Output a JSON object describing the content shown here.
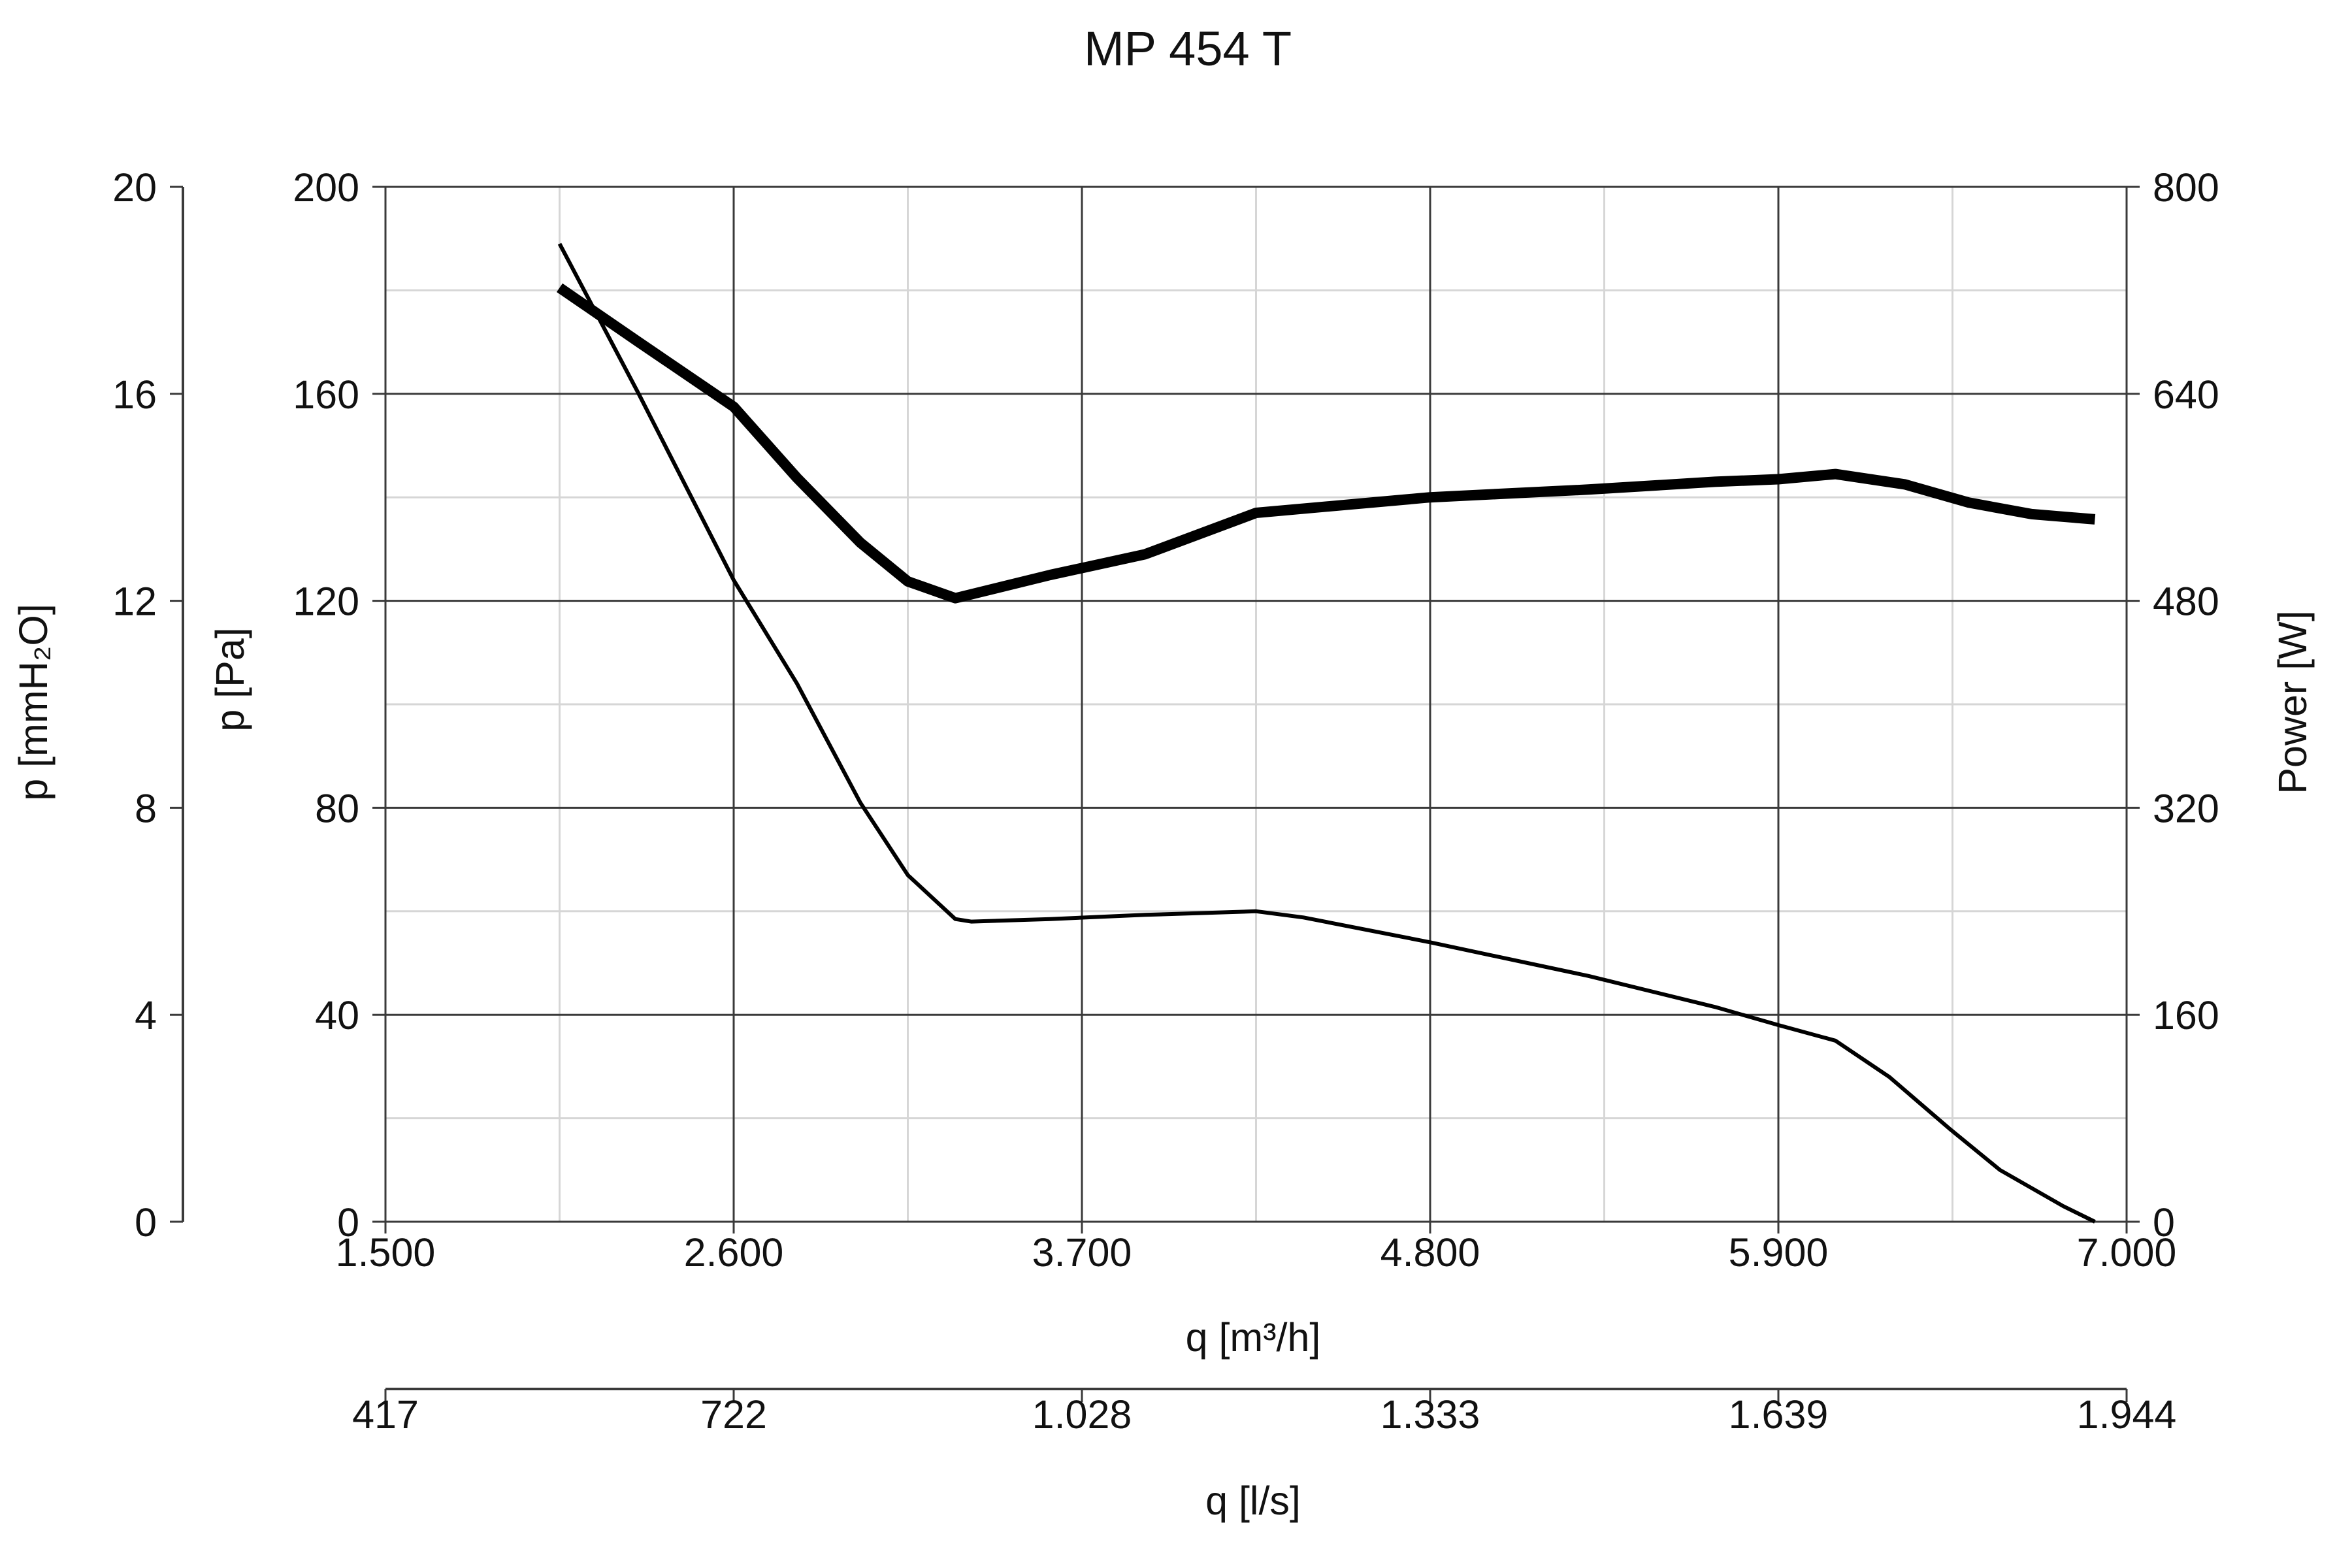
{
  "chart_data": {
    "type": "line",
    "title": "MP 454 T",
    "x_axis": {
      "label": "q [m³/h]",
      "range": [
        1500,
        7000
      ],
      "ticks": [
        1500,
        2600,
        3700,
        4800,
        5900,
        7000
      ],
      "tick_labels": [
        "1.500",
        "2.600",
        "3.700",
        "4.800",
        "5.900",
        "7.000"
      ],
      "minor_ticks": [
        2050,
        3150,
        4250,
        5350,
        6450
      ]
    },
    "x_axis_secondary": {
      "label": "q [l/s]",
      "tick_labels": [
        "417",
        "722",
        "1.028",
        "1.333",
        "1.639",
        "1.944"
      ]
    },
    "y_axis": {
      "label": "p [Pa]",
      "range": [
        0,
        200
      ],
      "ticks": [
        0,
        40,
        80,
        120,
        160,
        200
      ],
      "tick_labels": [
        "0",
        "40",
        "80",
        "120",
        "160",
        "200"
      ],
      "minor_ticks": [
        20,
        60,
        100,
        140,
        180
      ]
    },
    "y_axis_outer": {
      "label": "p [mmH₂O]",
      "tick_labels": [
        "0",
        "4",
        "8",
        "12",
        "16",
        "20"
      ]
    },
    "y_axis_right": {
      "label": "Power [W]",
      "range": [
        0,
        800
      ],
      "tick_labels": [
        "0",
        "160",
        "320",
        "480",
        "640",
        "800"
      ]
    },
    "grid": true,
    "series": [
      {
        "axis": "left",
        "line_style": "thin",
        "points": [
          [
            2050,
            189
          ],
          [
            2300,
            160
          ],
          [
            2600,
            124
          ],
          [
            2800,
            104
          ],
          [
            3000,
            81
          ],
          [
            3150,
            67
          ],
          [
            3300,
            58.5
          ],
          [
            3350,
            58
          ],
          [
            3600,
            58.5
          ],
          [
            3900,
            59.3
          ],
          [
            4250,
            60
          ],
          [
            4400,
            58.8
          ],
          [
            4800,
            54
          ],
          [
            5300,
            47.5
          ],
          [
            5700,
            41.5
          ],
          [
            5900,
            38
          ],
          [
            6080,
            35
          ],
          [
            6250,
            28
          ],
          [
            6440,
            18
          ],
          [
            6600,
            10
          ],
          [
            6800,
            3
          ],
          [
            6900,
            0
          ]
        ]
      },
      {
        "axis": "right",
        "line_style": "thick",
        "points": [
          [
            2050,
            722
          ],
          [
            2300,
            680
          ],
          [
            2600,
            630
          ],
          [
            2800,
            575
          ],
          [
            3000,
            525
          ],
          [
            3150,
            495
          ],
          [
            3300,
            482
          ],
          [
            3600,
            500
          ],
          [
            3900,
            516
          ],
          [
            4250,
            548
          ],
          [
            4800,
            560
          ],
          [
            5300,
            566
          ],
          [
            5700,
            572
          ],
          [
            5900,
            574
          ],
          [
            6080,
            578
          ],
          [
            6300,
            570
          ],
          [
            6500,
            556
          ],
          [
            6700,
            547
          ],
          [
            6900,
            543
          ]
        ]
      }
    ]
  }
}
